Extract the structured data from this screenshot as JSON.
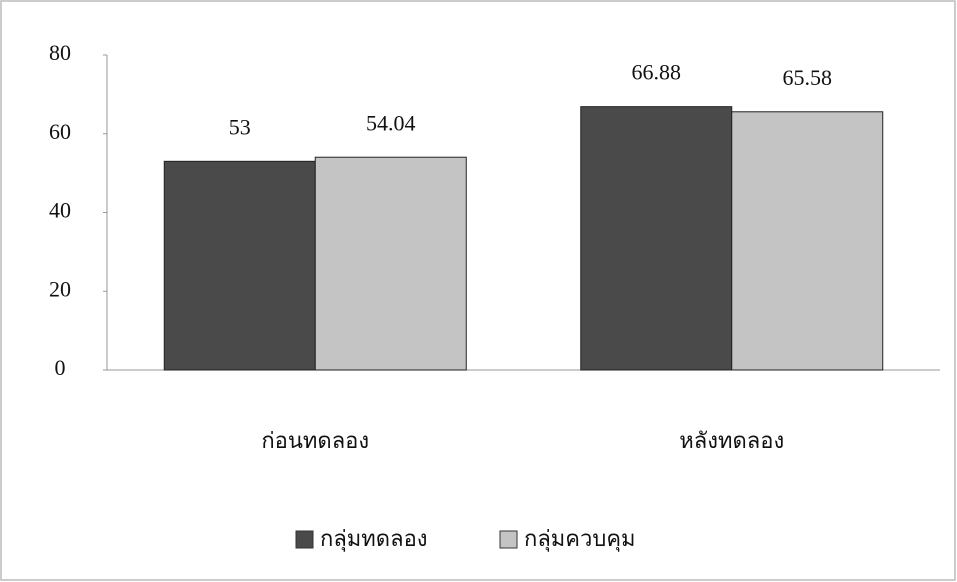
{
  "chart_data": {
    "type": "bar",
    "categories": [
      "ก่อนทดลอง",
      "หลังทดลอง"
    ],
    "series": [
      {
        "name": "กลุ่มทดลอง",
        "color": "#4a4a4a",
        "values": [
          53,
          66.88
        ]
      },
      {
        "name": "กลุ่มควบคุม",
        "color": "#c4c4c4",
        "values": [
          54.04,
          65.58
        ]
      }
    ],
    "ylim": [
      0,
      80
    ],
    "yticks": [
      0,
      20,
      40,
      60,
      80
    ],
    "grid": false,
    "legend": "bottom"
  }
}
